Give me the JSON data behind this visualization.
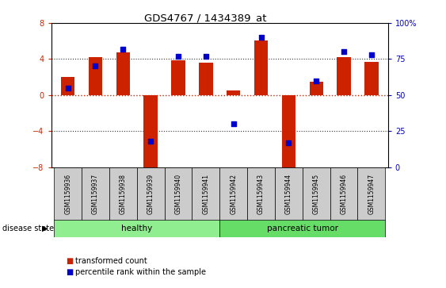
{
  "title": "GDS4767 / 1434389_at",
  "samples": [
    "GSM1159936",
    "GSM1159937",
    "GSM1159938",
    "GSM1159939",
    "GSM1159940",
    "GSM1159941",
    "GSM1159942",
    "GSM1159943",
    "GSM1159944",
    "GSM1159945",
    "GSM1159946",
    "GSM1159947"
  ],
  "bar_values": [
    2.0,
    4.2,
    4.7,
    -8.5,
    3.9,
    3.6,
    0.5,
    6.1,
    -8.3,
    1.5,
    4.2,
    3.7
  ],
  "percentile_values": [
    55,
    70,
    82,
    18,
    77,
    77,
    30,
    90,
    17,
    60,
    80,
    78
  ],
  "ylim_left": [
    -8,
    8
  ],
  "ylim_right": [
    0,
    100
  ],
  "yticks_left": [
    -8,
    -4,
    0,
    4,
    8
  ],
  "yticks_right": [
    0,
    25,
    50,
    75,
    100
  ],
  "bar_color": "#cc2200",
  "dot_color": "#0000cc",
  "healthy_group": [
    0,
    1,
    2,
    3,
    4,
    5
  ],
  "tumor_group": [
    6,
    7,
    8,
    9,
    10,
    11
  ],
  "healthy_label": "healthy",
  "tumor_label": "pancreatic tumor",
  "healthy_color": "#90ee90",
  "tumor_color": "#66dd66",
  "disease_state_label": "disease state",
  "group_box_color": "#cccccc",
  "legend_bar_label": "transformed count",
  "legend_dot_label": "percentile rank within the sample",
  "hline_color": "#cc2200",
  "dotted_line_color": "#333333",
  "bg_color": "#ffffff",
  "bar_width": 0.5
}
